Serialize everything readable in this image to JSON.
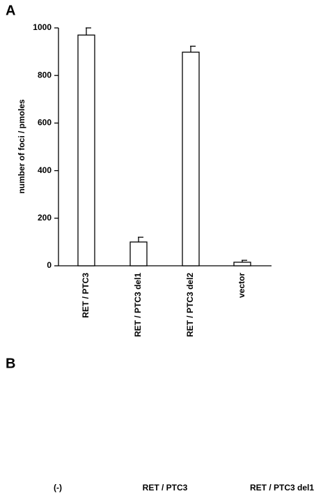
{
  "panel_a_label": "A",
  "chart_data": {
    "type": "bar",
    "ylabel": "number of foci / pmoles",
    "categories": [
      "RET / PTC3",
      "RET / PTC3 del1",
      "RET / PTC3 del2",
      "vector"
    ],
    "values": [
      970,
      100,
      898,
      15
    ],
    "errors": [
      30,
      20,
      25,
      8
    ],
    "color": "#ffffff",
    "ylim": [
      0,
      1000
    ],
    "yticks": [
      0,
      200,
      400,
      600,
      800,
      1000
    ],
    "grid": false
  },
  "panel_b": {
    "label": "B",
    "lanes": [
      "(-)",
      "RET / PTC3",
      "RET / PTC3 del1"
    ]
  }
}
